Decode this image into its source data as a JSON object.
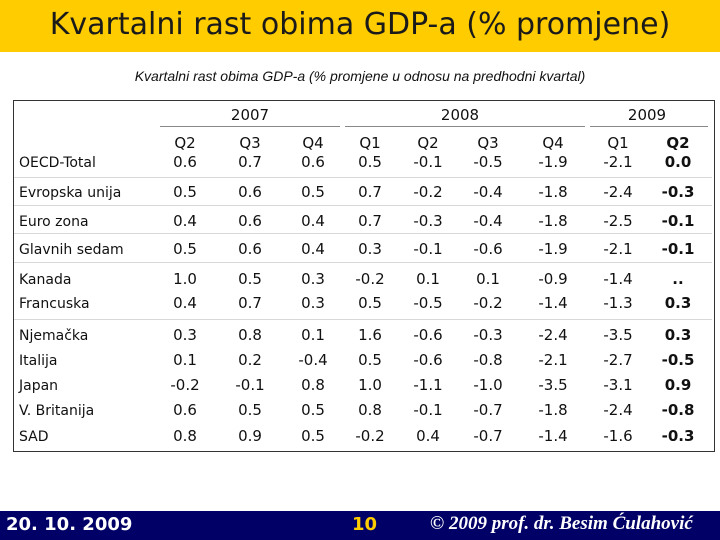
{
  "slide": {
    "title": "Kvartalni rast obima GDP-a (% promjene)",
    "subtitle": "Kvartalni rast obima GDP-a (% promjene u odnosu na predhodni kvartal)"
  },
  "table": {
    "years": [
      "2007",
      "2008",
      "2009"
    ],
    "quarters": [
      "Q2",
      "Q3",
      "Q4",
      "Q1",
      "Q2",
      "Q3",
      "Q4",
      "Q1",
      "Q2"
    ],
    "rows": [
      {
        "label": "OECD-Total",
        "values": [
          "0.6",
          "0.7",
          "0.6",
          "0.5",
          "-0.1",
          "-0.5",
          "-1.9",
          "-2.1",
          "0.0"
        ]
      },
      {
        "label": "Evropska unija",
        "values": [
          "0.5",
          "0.6",
          "0.5",
          "0.7",
          "-0.2",
          "-0.4",
          "-1.8",
          "-2.4",
          "-0.3"
        ]
      },
      {
        "label": "Euro zona",
        "values": [
          "0.4",
          "0.6",
          "0.4",
          "0.7",
          "-0.3",
          "-0.4",
          "-1.8",
          "-2.5",
          "-0.1"
        ]
      },
      {
        "label": "Glavnih sedam",
        "values": [
          "0.5",
          "0.6",
          "0.4",
          "0.3",
          "-0.1",
          "-0.6",
          "-1.9",
          "-2.1",
          "-0.1"
        ]
      },
      {
        "label": "Kanada",
        "values": [
          "1.0",
          "0.5",
          "0.3",
          "-0.2",
          "0.1",
          "0.1",
          "-0.9",
          "-1.4",
          ".."
        ]
      },
      {
        "label": "Francuska",
        "values": [
          "0.4",
          "0.7",
          "0.3",
          "0.5",
          "-0.5",
          "-0.2",
          "-1.4",
          "-1.3",
          "0.3"
        ]
      },
      {
        "label": "Njemačka",
        "values": [
          "0.3",
          "0.8",
          "0.1",
          "1.6",
          "-0.6",
          "-0.3",
          "-2.4",
          "-3.5",
          "0.3"
        ]
      },
      {
        "label": "Italija",
        "values": [
          "0.1",
          "0.2",
          "-0.4",
          "0.5",
          "-0.6",
          "-0.8",
          "-2.1",
          "-2.7",
          "-0.5"
        ]
      },
      {
        "label": "Japan",
        "values": [
          "-0.2",
          "-0.1",
          "0.8",
          "1.0",
          "-1.1",
          "-1.0",
          "-3.5",
          "-3.1",
          "0.9"
        ]
      },
      {
        "label": "V. Britanija",
        "values": [
          "0.6",
          "0.5",
          "0.5",
          "0.8",
          "-0.1",
          "-0.7",
          "-1.8",
          "-2.4",
          "-0.8"
        ]
      },
      {
        "label": "SAD",
        "values": [
          "0.8",
          "0.9",
          "0.5",
          "-0.2",
          "0.4",
          "-0.7",
          "-1.4",
          "-1.6",
          "-0.3"
        ]
      }
    ]
  },
  "footer": {
    "date": "20. 10. 2009",
    "page": "10",
    "copyright": "© 2009 prof. dr. Besim Ćulahović"
  },
  "colors": {
    "title_bar": "#ffcc00",
    "footer_bar": "#000066",
    "page_number": "#ffcc00"
  }
}
